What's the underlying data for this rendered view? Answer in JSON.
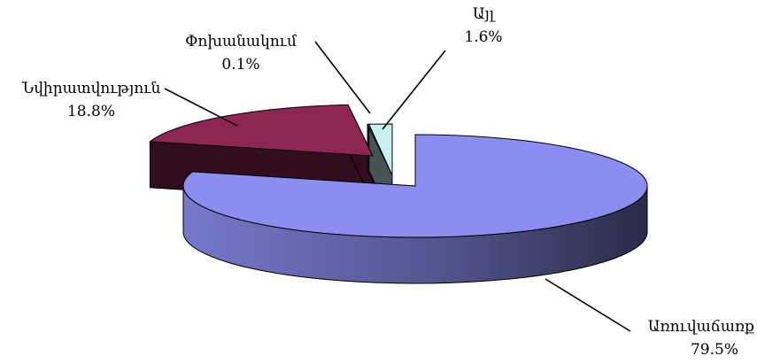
{
  "chart_data": {
    "type": "pie",
    "style": "3d-exploded",
    "title": "",
    "legend": "none",
    "slices": [
      {
        "label": "Առուվաճառք",
        "value": 79.5,
        "display": "79.5%",
        "color": "#8b8ef0"
      },
      {
        "label": "Նվիրատվություն",
        "value": 18.8,
        "display": "18.8%",
        "color": "#8e2653"
      },
      {
        "label": "Փոխանակում",
        "value": 0.1,
        "display": "0.1%",
        "color": "#7f8260"
      },
      {
        "label": "Այլ",
        "value": 1.6,
        "display": "1.6%",
        "color": "#c8f0f2"
      }
    ]
  }
}
